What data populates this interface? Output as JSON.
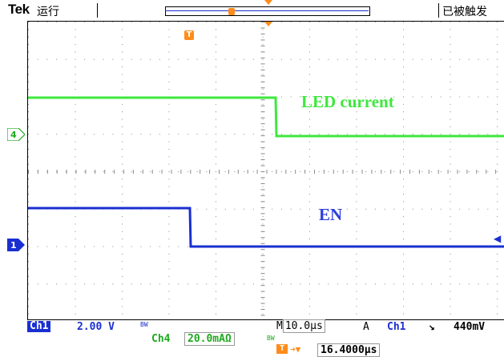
{
  "header": {
    "brand": "Tek",
    "run_status": "运行",
    "trigger_state": "已被触发"
  },
  "traces": {
    "led_label": "LED current",
    "en_label": "EN"
  },
  "markers": {
    "trigger_icon": "T",
    "ch4_level": "4",
    "ch1_level": "1"
  },
  "readout": {
    "ch1_tag": "Ch1",
    "ch1_scale": "2.00 V",
    "bw_symbol": "BW",
    "ch4_tag": "Ch4",
    "ch4_scale": "20.0mAΩ",
    "timebase_prefix": "M",
    "timebase": "10.0µs",
    "trigger_mode": "A",
    "trigger_source": "Ch1",
    "trigger_slope": "↘",
    "trigger_level": "440mV",
    "horizontal_position": "16.4000µs"
  },
  "colors": {
    "ch1": "#1a2fd1",
    "ch4": "#3ee83e",
    "trigger": "#ff8c1a"
  }
}
